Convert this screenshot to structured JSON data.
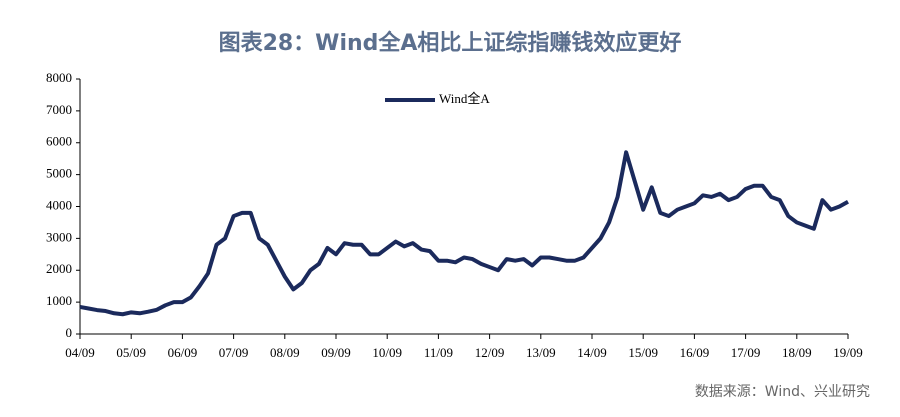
{
  "chart_data": {
    "type": "line",
    "title": "图表28：Wind全A相比上证综指赚钱效应更好",
    "source": "数据来源：Wind、兴业研究",
    "categories": [
      "04/09",
      null,
      null,
      null,
      null,
      null,
      "05/09",
      null,
      null,
      null,
      null,
      null,
      "06/09",
      null,
      null,
      null,
      null,
      null,
      "07/09",
      null,
      null,
      null,
      null,
      null,
      "08/09",
      null,
      null,
      null,
      null,
      null,
      "09/09",
      null,
      null,
      null,
      null,
      null,
      "10/09",
      null,
      null,
      null,
      null,
      null,
      "11/09",
      null,
      null,
      null,
      null,
      null,
      "12/09",
      null,
      null,
      null,
      null,
      null,
      "13/09",
      null,
      null,
      null,
      null,
      null,
      "14/09",
      null,
      null,
      null,
      null,
      null,
      "15/09",
      null,
      null,
      null,
      null,
      null,
      "16/09",
      null,
      null,
      null,
      null,
      null,
      "17/09",
      null,
      null,
      null,
      null,
      null,
      "18/09",
      null,
      null,
      null,
      null,
      null,
      "19/09"
    ],
    "series": [
      {
        "name": "Wind全A",
        "color": "#1b2a5c",
        "values": [
          850,
          800,
          750,
          720,
          650,
          620,
          680,
          650,
          700,
          760,
          900,
          1000,
          1000,
          1150,
          1500,
          1900,
          2800,
          3000,
          3700,
          3800,
          3800,
          3000,
          2800,
          2300,
          1800,
          1400,
          1600,
          2000,
          2200,
          2700,
          2500,
          2850,
          2800,
          2800,
          2500,
          2500,
          2700,
          2900,
          2750,
          2850,
          2650,
          2600,
          2300,
          2300,
          2250,
          2400,
          2350,
          2200,
          2100,
          2000,
          2350,
          2300,
          2350,
          2150,
          2400,
          2400,
          2350,
          2300,
          2300,
          2400,
          2700,
          3000,
          3500,
          4300,
          5700,
          4800,
          3900,
          4600,
          3800,
          3700,
          3900,
          4000,
          4100,
          4350,
          4300,
          4400,
          4200,
          4300,
          4550,
          4650,
          4650,
          4300,
          4200,
          3700,
          3500,
          3400,
          3300,
          4200,
          3900,
          4000,
          4150
        ]
      }
    ],
    "ylim": [
      0,
      8000
    ],
    "yticks": [
      0,
      1000,
      2000,
      3000,
      4000,
      5000,
      6000,
      7000,
      8000
    ],
    "grid": false,
    "legend": "top"
  }
}
